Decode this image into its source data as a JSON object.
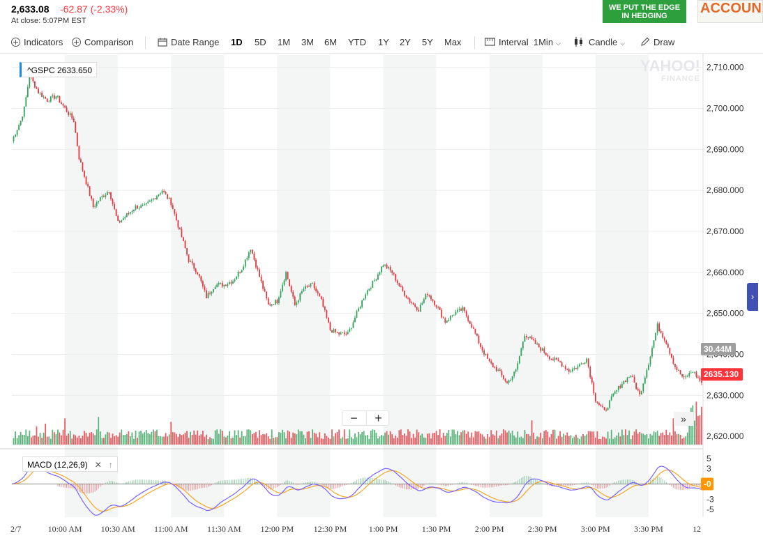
{
  "quote": {
    "price": "2,633.08",
    "change": "-62.87 (-2.33%)",
    "close_note": "At close: 5:07PM EST"
  },
  "ads": {
    "green_line1": "WE PUT THE EDGE",
    "green_line2": "IN HEDGING",
    "account": "ACCOUN"
  },
  "toolbar": {
    "indicators": "Indicators",
    "comparison": "Comparison",
    "date_range": "Date Range",
    "ranges": [
      "1D",
      "5D",
      "1M",
      "3M",
      "6M",
      "YTD",
      "1Y",
      "2Y",
      "5Y",
      "Max"
    ],
    "active_range": "1D",
    "interval_label": "Interval",
    "interval_value": "1Min",
    "chart_type": "Candle",
    "draw": "Draw"
  },
  "ticker_label": "^GSPC  2633.650",
  "watermark": {
    "line1": "YAHOO!",
    "line2": "FINANCE"
  },
  "zoom": {
    "minus": "−",
    "plus": "+"
  },
  "forward": "»",
  "side_tab": "›",
  "volume_badge": "30.44M",
  "price_badge": "2635.130",
  "macd_badge": "-0",
  "macd_label": "MACD (12,26,9)",
  "colors": {
    "up": "#2e9f57",
    "down": "#e0333a",
    "macd": "#7b61ff",
    "signal": "#f5a623",
    "price_badge": "#ff333a",
    "volume_badge": "#9e9e9e",
    "macd_badge": "#ff9800"
  },
  "chart_data": {
    "type": "candlestick",
    "x_tick_labels": [
      "2/7",
      "10:00 AM",
      "10:30 AM",
      "11:00 AM",
      "11:30 AM",
      "12:00 PM",
      "12:30 PM",
      "1:00 PM",
      "1:30 PM",
      "2:00 PM",
      "2:30 PM",
      "3:00 PM",
      "3:30 PM",
      "12"
    ],
    "y_ticks": [
      "2,710.000",
      "2,700.000",
      "2,690.000",
      "2,680.000",
      "2,670.000",
      "2,660.000",
      "2,650.000",
      "2,640.000",
      "2,630.000",
      "2,620.000"
    ],
    "ylim": [
      2618,
      2713
    ],
    "macd_ticks": [
      "5",
      "3",
      "-3",
      "-5"
    ],
    "macd_ylim": [
      -6.5,
      6.5
    ],
    "close_path": [
      [
        "09:30",
        2692
      ],
      [
        "09:35",
        2697
      ],
      [
        "09:37",
        2700
      ],
      [
        "09:40",
        2708
      ],
      [
        "09:45",
        2704
      ],
      [
        "09:50",
        2702
      ],
      [
        "09:55",
        2703
      ],
      [
        "10:00",
        2700
      ],
      [
        "10:05",
        2697
      ],
      [
        "10:08",
        2688
      ],
      [
        "10:12",
        2682
      ],
      [
        "10:16",
        2676
      ],
      [
        "10:20",
        2678
      ],
      [
        "10:25",
        2680
      ],
      [
        "10:30",
        2672
      ],
      [
        "10:35",
        2674
      ],
      [
        "10:40",
        2676
      ],
      [
        "10:45",
        2676
      ],
      [
        "10:50",
        2678
      ],
      [
        "10:55",
        2680
      ],
      [
        "11:00",
        2677
      ],
      [
        "11:05",
        2670
      ],
      [
        "11:10",
        2663
      ],
      [
        "11:15",
        2660
      ],
      [
        "11:20",
        2654
      ],
      [
        "11:25",
        2657
      ],
      [
        "11:30",
        2657
      ],
      [
        "11:35",
        2658
      ],
      [
        "11:40",
        2661
      ],
      [
        "11:45",
        2666
      ],
      [
        "11:50",
        2659
      ],
      [
        "11:55",
        2652
      ],
      [
        "12:00",
        2653
      ],
      [
        "12:05",
        2660
      ],
      [
        "12:10",
        2652
      ],
      [
        "12:15",
        2656
      ],
      [
        "12:20",
        2657
      ],
      [
        "12:25",
        2653
      ],
      [
        "12:30",
        2646
      ],
      [
        "12:35",
        2645
      ],
      [
        "12:40",
        2645
      ],
      [
        "12:45",
        2650
      ],
      [
        "12:50",
        2655
      ],
      [
        "12:55",
        2658
      ],
      [
        "13:00",
        2662
      ],
      [
        "13:05",
        2660
      ],
      [
        "13:10",
        2656
      ],
      [
        "13:15",
        2653
      ],
      [
        "13:20",
        2651
      ],
      [
        "13:25",
        2655
      ],
      [
        "13:30",
        2652
      ],
      [
        "13:35",
        2648
      ],
      [
        "13:40",
        2650
      ],
      [
        "13:45",
        2651
      ],
      [
        "13:50",
        2647
      ],
      [
        "13:55",
        2642
      ],
      [
        "14:00",
        2638
      ],
      [
        "14:05",
        2636
      ],
      [
        "14:10",
        2633
      ],
      [
        "14:15",
        2636
      ],
      [
        "14:20",
        2645
      ],
      [
        "14:25",
        2643
      ],
      [
        "14:30",
        2641
      ],
      [
        "14:35",
        2639
      ],
      [
        "14:40",
        2638
      ],
      [
        "14:45",
        2636
      ],
      [
        "14:50",
        2637
      ],
      [
        "14:55",
        2639
      ],
      [
        "15:00",
        2629
      ],
      [
        "15:05",
        2626
      ],
      [
        "15:10",
        2630
      ],
      [
        "15:15",
        2633
      ],
      [
        "15:20",
        2635
      ],
      [
        "15:25",
        2630
      ],
      [
        "15:30",
        2638
      ],
      [
        "15:35",
        2647
      ],
      [
        "15:40",
        2643
      ],
      [
        "15:45",
        2637
      ],
      [
        "15:50",
        2634
      ],
      [
        "15:55",
        2636
      ],
      [
        "16:00",
        2633.08
      ]
    ]
  }
}
